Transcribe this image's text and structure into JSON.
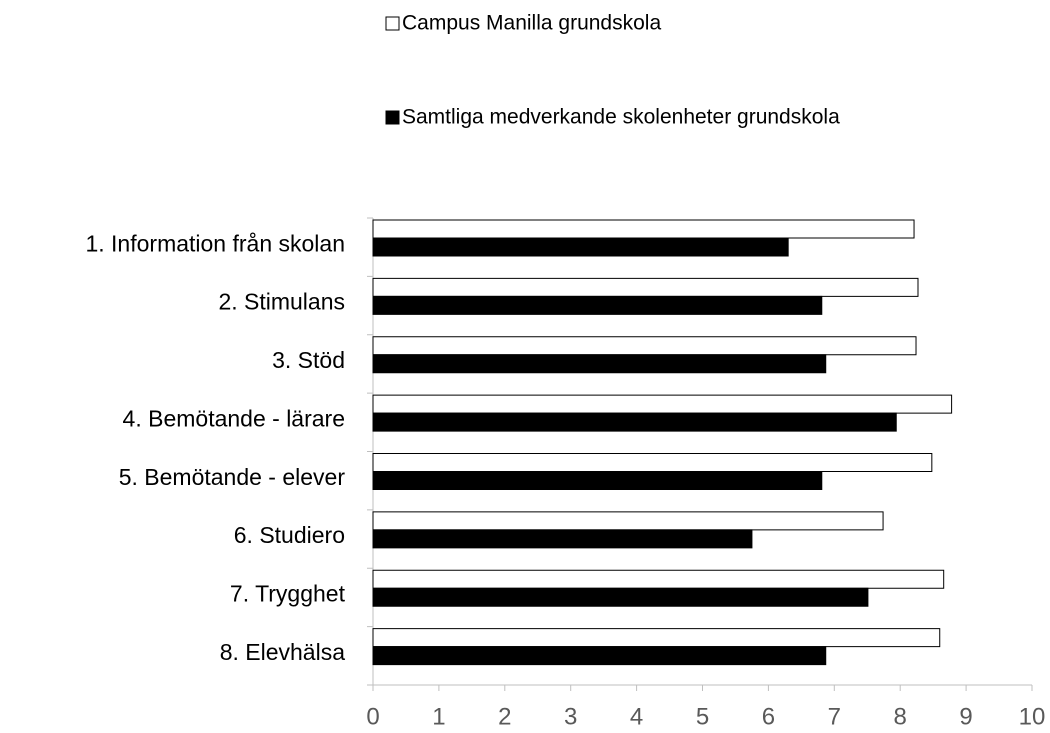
{
  "chart_data": {
    "type": "bar",
    "orientation": "horizontal",
    "categories": [
      "1. Information från skolan",
      "2. Stimulans",
      "3. Stöd",
      "4. Bemötande - lärare",
      "5. Bemötande - elever",
      "6. Studiero",
      "7. Trygghet",
      "8. Elevhälsa"
    ],
    "series": [
      {
        "name": "Campus Manilla grundskola",
        "color": "#ffffff",
        "values": [
          8.21,
          8.27,
          8.24,
          8.78,
          8.48,
          7.74,
          8.66,
          8.6
        ]
      },
      {
        "name": "Samtliga medverkande skolenheter grundskola",
        "color": "#000000",
        "values": [
          6.3,
          6.81,
          6.87,
          7.94,
          6.81,
          5.75,
          7.51,
          6.87
        ]
      }
    ],
    "xlim": [
      0,
      10
    ],
    "xticks": [
      0,
      1,
      2,
      3,
      4,
      5,
      6,
      7,
      8,
      9,
      10
    ],
    "grid": false,
    "legend": "top"
  }
}
